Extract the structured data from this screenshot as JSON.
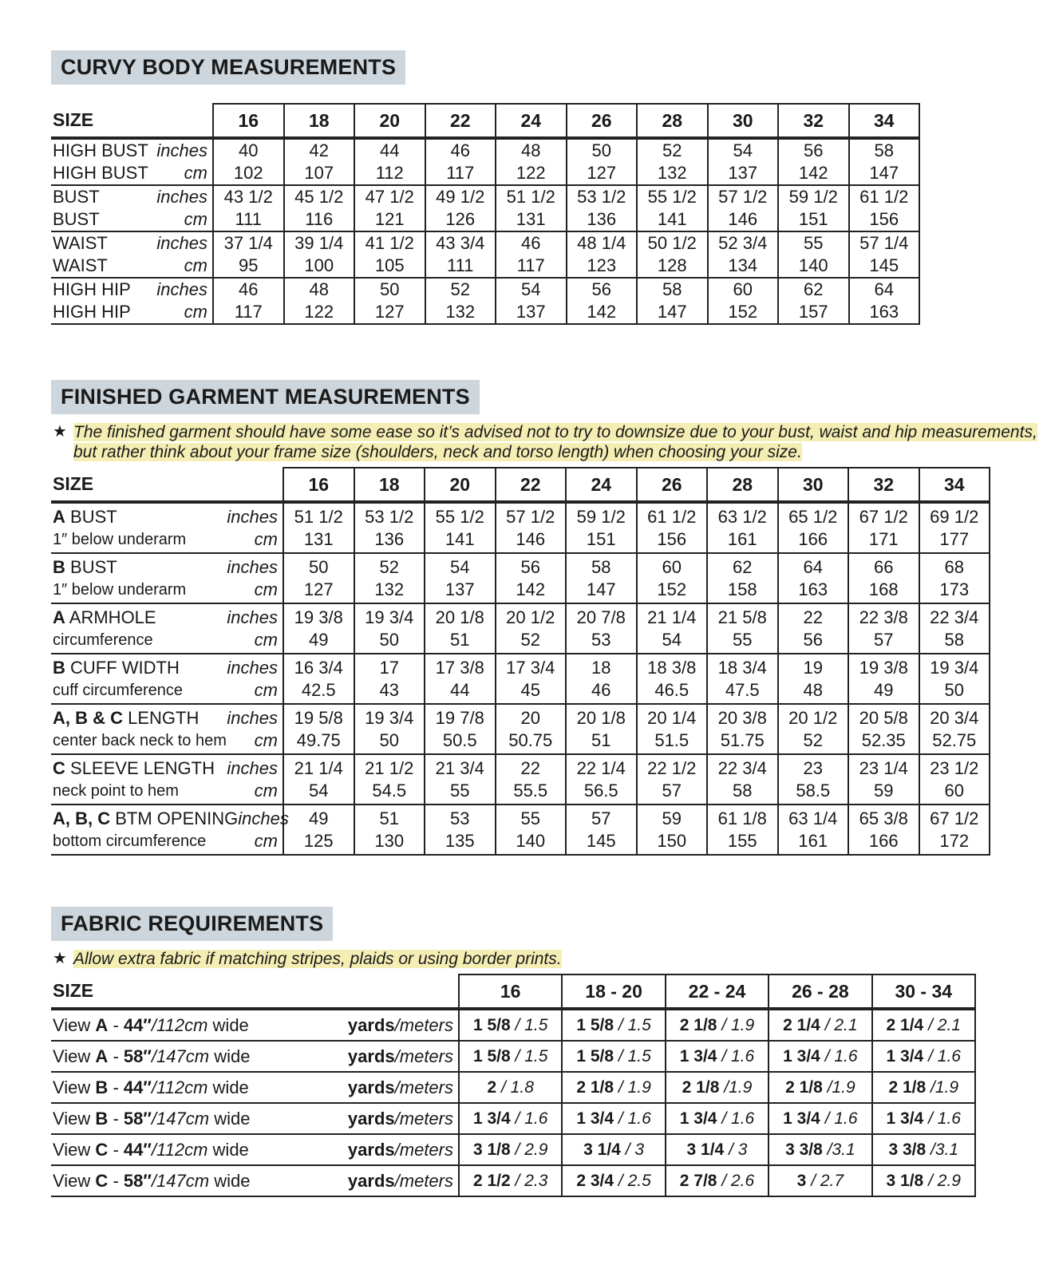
{
  "body_measurements": {
    "title": "CURVY BODY MEASUREMENTS",
    "size_label": "SIZE",
    "sizes": [
      "16",
      "18",
      "20",
      "22",
      "24",
      "26",
      "28",
      "30",
      "32",
      "34"
    ],
    "rows": [
      [
        {
          "name": "HIGH BUST",
          "unit": "inches",
          "values": [
            "40",
            "42",
            "44",
            "46",
            "48",
            "50",
            "52",
            "54",
            "56",
            "58"
          ]
        },
        {
          "name": "HIGH BUST",
          "unit": "cm",
          "values": [
            "102",
            "107",
            "112",
            "117",
            "122",
            "127",
            "132",
            "137",
            "142",
            "147"
          ]
        }
      ],
      [
        {
          "name": "BUST",
          "unit": "inches",
          "values": [
            "43 1/2",
            "45 1/2",
            "47 1/2",
            "49 1/2",
            "51 1/2",
            "53 1/2",
            "55 1/2",
            "57 1/2",
            "59 1/2",
            "61 1/2"
          ]
        },
        {
          "name": "BUST",
          "unit": "cm",
          "values": [
            "111",
            "116",
            "121",
            "126",
            "131",
            "136",
            "141",
            "146",
            "151",
            "156"
          ]
        }
      ],
      [
        {
          "name": "WAIST",
          "unit": "inches",
          "values": [
            "37 1/4",
            "39 1/4",
            "41 1/2",
            "43 3/4",
            "46",
            "48 1/4",
            "50 1/2",
            "52 3/4",
            "55",
            "57 1/4"
          ]
        },
        {
          "name": "WAIST",
          "unit": "cm",
          "values": [
            "95",
            "100",
            "105",
            "111",
            "117",
            "123",
            "128",
            "134",
            "140",
            "145"
          ]
        }
      ],
      [
        {
          "name": "HIGH HIP",
          "unit": "inches",
          "values": [
            "46",
            "48",
            "50",
            "52",
            "54",
            "56",
            "58",
            "60",
            "62",
            "64"
          ]
        },
        {
          "name": "HIGH HIP",
          "unit": "cm",
          "values": [
            "117",
            "122",
            "127",
            "132",
            "137",
            "142",
            "147",
            "152",
            "157",
            "163"
          ]
        }
      ]
    ]
  },
  "garment_measurements": {
    "title": "FINISHED GARMENT MEASUREMENTS",
    "note": "The finished garment should have some ease so it’s advised not to try to downsize due to your bust, waist and hip measurements, but rather think about your frame size (shoulders, neck and torso length) when choosing your size.",
    "size_label": "SIZE",
    "sizes": [
      "16",
      "18",
      "20",
      "22",
      "24",
      "26",
      "28",
      "30",
      "32",
      "34"
    ],
    "rows": [
      [
        {
          "code": "A",
          "name": "BUST",
          "unit": "inches",
          "values": [
            "51 1/2",
            "53 1/2",
            "55 1/2",
            "57 1/2",
            "59 1/2",
            "61 1/2",
            "63 1/2",
            "65 1/2",
            "67 1/2",
            "69 1/2"
          ]
        },
        {
          "name": "1″ below underarm",
          "unit": "cm",
          "values": [
            "131",
            "136",
            "141",
            "146",
            "151",
            "156",
            "161",
            "166",
            "171",
            "177"
          ]
        }
      ],
      [
        {
          "code": "B",
          "name": "BUST",
          "unit": "inches",
          "values": [
            "50",
            "52",
            "54",
            "56",
            "58",
            "60",
            "62",
            "64",
            "66",
            "68"
          ]
        },
        {
          "name": "1″ below underarm",
          "unit": "cm",
          "values": [
            "127",
            "132",
            "137",
            "142",
            "147",
            "152",
            "158",
            "163",
            "168",
            "173"
          ]
        }
      ],
      [
        {
          "code": "A",
          "name": "ARMHOLE",
          "unit": "inches",
          "values": [
            "19 3/8",
            "19 3/4",
            "20 1/8",
            "20 1/2",
            "20 7/8",
            "21 1/4",
            "21 5/8",
            "22",
            "22 3/8",
            "22 3/4"
          ]
        },
        {
          "name": "circumference",
          "unit": "cm",
          "values": [
            "49",
            "50",
            "51",
            "52",
            "53",
            "54",
            "55",
            "56",
            "57",
            "58"
          ]
        }
      ],
      [
        {
          "code": "B",
          "name": "CUFF WIDTH",
          "unit": "inches",
          "values": [
            "16 3/4",
            "17",
            "17 3/8",
            "17 3/4",
            "18",
            "18 3/8",
            "18 3/4",
            "19",
            "19 3/8",
            "19 3/4"
          ]
        },
        {
          "name": "cuff circumference",
          "unit": "cm",
          "values": [
            "42.5",
            "43",
            "44",
            "45",
            "46",
            "46.5",
            "47.5",
            "48",
            "49",
            "50"
          ]
        }
      ],
      [
        {
          "code": "A, B & C",
          "name": "LENGTH",
          "unit": "inches",
          "values": [
            "19 5/8",
            "19 3/4",
            "19 7/8",
            "20",
            "20 1/8",
            "20 1/4",
            "20 3/8",
            "20 1/2",
            "20 5/8",
            "20 3/4"
          ]
        },
        {
          "name": "center back neck to hem",
          "unit": "cm",
          "values": [
            "49.75",
            "50",
            "50.5",
            "50.75",
            "51",
            "51.5",
            "51.75",
            "52",
            "52.35",
            "52.75"
          ]
        }
      ],
      [
        {
          "code": "C",
          "name": "SLEEVE LENGTH",
          "unit": "inches",
          "values": [
            "21 1/4",
            "21 1/2",
            "21 3/4",
            "22",
            "22 1/4",
            "22 1/2",
            "22 3/4",
            "23",
            "23 1/4",
            "23 1/2"
          ]
        },
        {
          "name": "neck point to hem",
          "unit": "cm",
          "values": [
            "54",
            "54.5",
            "55",
            "55.5",
            "56.5",
            "57",
            "58",
            "58.5",
            "59",
            "60"
          ]
        }
      ],
      [
        {
          "code": "A, B, C",
          "name": "BTM OPENING",
          "unit": "inches",
          "values": [
            "49",
            "51",
            "53",
            "55",
            "57",
            "59",
            "61 1/8",
            "63 1/4",
            "65 3/8",
            "67 1/2"
          ]
        },
        {
          "name": "bottom circumference",
          "unit": "cm",
          "values": [
            "125",
            "130",
            "135",
            "140",
            "145",
            "150",
            "155",
            "161",
            "166",
            "172"
          ]
        }
      ]
    ]
  },
  "fabric_requirements": {
    "title": "FABRIC REQUIREMENTS",
    "note": "Allow extra fabric if matching stripes, plaids or using border prints.",
    "size_label": "SIZE",
    "sizes": [
      "16",
      "18 - 20",
      "22 - 24",
      "26 - 28",
      "30 - 34"
    ],
    "unit": [
      "yards",
      "/meters"
    ],
    "rows": [
      {
        "label": [
          "View",
          "A",
          "-",
          "44″",
          "/112cm",
          "wide"
        ],
        "values": [
          [
            "1 5/8",
            "/ 1.5"
          ],
          [
            "1 5/8",
            "/ 1.5"
          ],
          [
            "2 1/8",
            "/ 1.9"
          ],
          [
            "2 1/4",
            "/ 2.1"
          ],
          [
            "2 1/4",
            "/ 2.1"
          ]
        ]
      },
      {
        "label": [
          "View",
          "A",
          "-",
          "58″",
          "/147cm",
          "wide"
        ],
        "values": [
          [
            "1 5/8",
            "/ 1.5"
          ],
          [
            "1 5/8",
            "/ 1.5"
          ],
          [
            "1 3/4",
            "/ 1.6"
          ],
          [
            "1 3/4",
            "/ 1.6"
          ],
          [
            "1 3/4",
            "/ 1.6"
          ]
        ]
      },
      {
        "label": [
          "View",
          "B",
          "-",
          "44″",
          "/112cm",
          "wide"
        ],
        "values": [
          [
            "2",
            "/ 1.8"
          ],
          [
            "2 1/8",
            "/ 1.9"
          ],
          [
            "2 1/8",
            "/1.9"
          ],
          [
            "2 1/8",
            "/1.9"
          ],
          [
            "2 1/8",
            "/1.9"
          ]
        ]
      },
      {
        "label": [
          "View",
          "B",
          "-",
          "58″",
          "/147cm",
          "wide"
        ],
        "values": [
          [
            "1 3/4",
            "/ 1.6"
          ],
          [
            "1 3/4",
            "/ 1.6"
          ],
          [
            "1 3/4",
            "/ 1.6"
          ],
          [
            "1 3/4",
            "/ 1.6"
          ],
          [
            "1 3/4",
            "/ 1.6"
          ]
        ]
      },
      {
        "label": [
          "View",
          "C",
          "-",
          "44″",
          "/112cm",
          "wide"
        ],
        "values": [
          [
            "3 1/8",
            "/ 2.9"
          ],
          [
            "3 1/4",
            "/ 3"
          ],
          [
            "3 1/4",
            "/ 3"
          ],
          [
            "3 3/8",
            "/3.1"
          ],
          [
            "3 3/8",
            "/3.1"
          ]
        ]
      },
      {
        "label": [
          "View",
          "C",
          "-",
          "58″",
          "/147cm",
          "wide"
        ],
        "values": [
          [
            "2 1/2",
            "/ 2.3"
          ],
          [
            "2 3/4",
            "/ 2.5"
          ],
          [
            "2 7/8",
            "/ 2.6"
          ],
          [
            "3",
            "/ 2.7"
          ],
          [
            "3 1/8",
            "/ 2.9"
          ]
        ]
      }
    ]
  }
}
